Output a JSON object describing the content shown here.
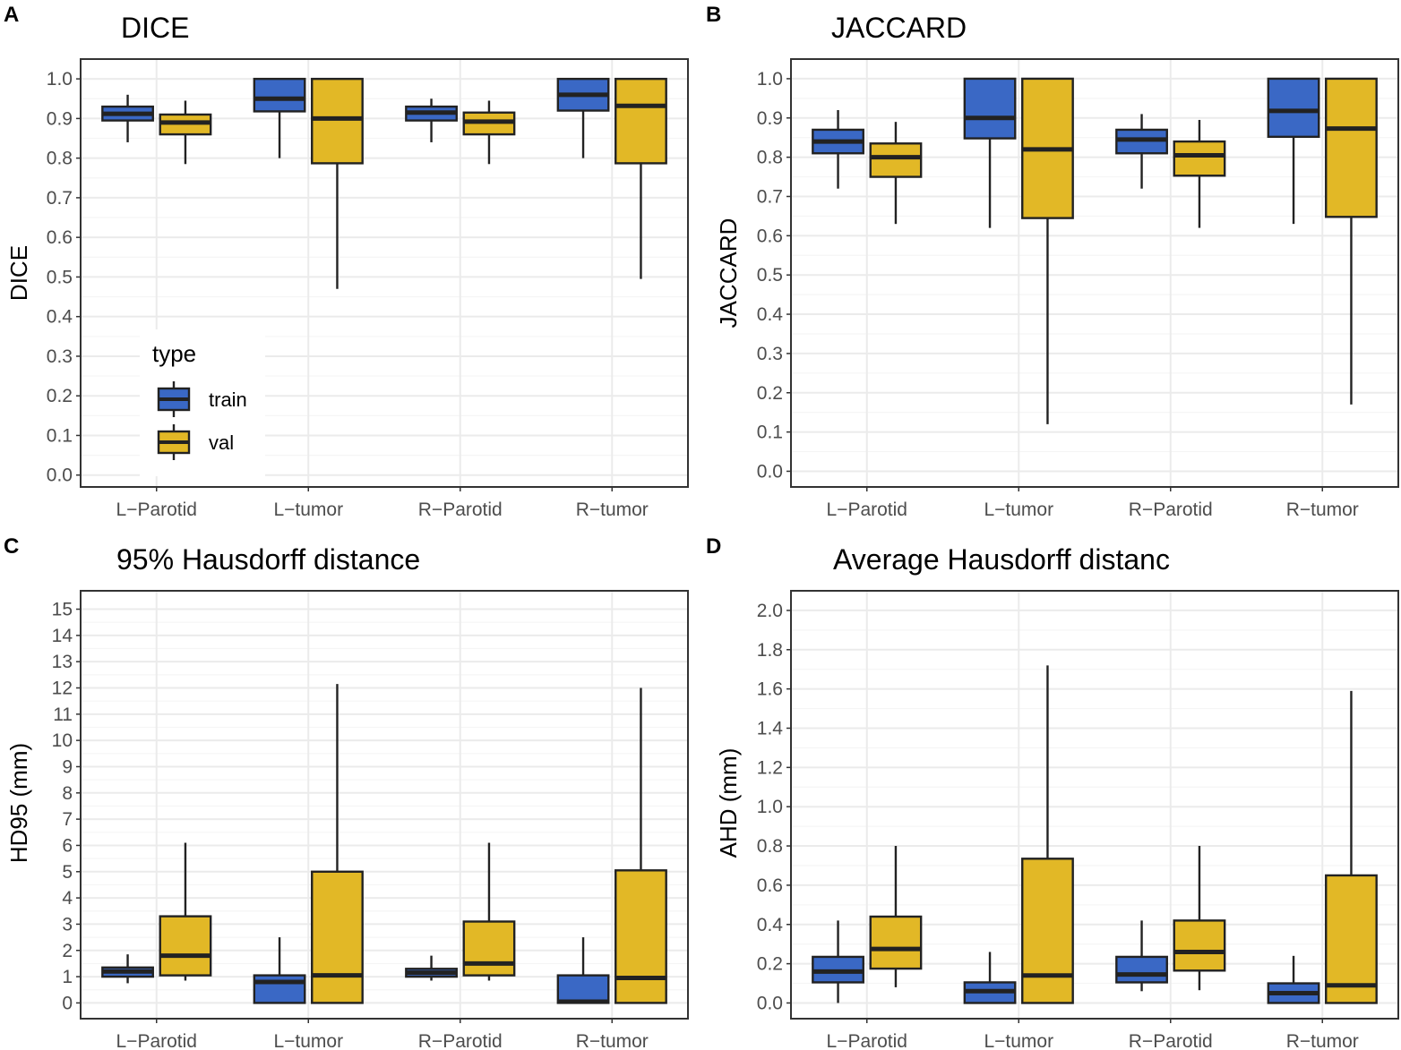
{
  "colors": {
    "train": "#3a68c5",
    "val": "#e2b826",
    "grid_major": "#ebebeb",
    "grid_minor": "#f5f5f5",
    "panel_border": "#333333",
    "box_stroke": "#222222"
  },
  "legend": {
    "title": "type",
    "items": [
      {
        "key": "train",
        "label": "train"
      },
      {
        "key": "val",
        "label": "val"
      }
    ]
  },
  "chart_data": [
    {
      "panel": "A",
      "type": "boxplot",
      "title": "DICE",
      "ylabel": "DICE",
      "xlabel": "",
      "ylim": [
        -0.03,
        1.05
      ],
      "yticks": [
        0.0,
        0.1,
        0.2,
        0.3,
        0.4,
        0.5,
        0.6,
        0.7,
        0.8,
        0.9,
        1.0
      ],
      "ytick_labels": [
        "0.0",
        "0.1",
        "0.2",
        "0.3",
        "0.4",
        "0.5",
        "0.6",
        "0.7",
        "0.8",
        "0.9",
        "1.0"
      ],
      "categories": [
        "L−Parotid",
        "L−tumor",
        "R−Parotid",
        "R−tumor"
      ],
      "series": [
        {
          "name": "train",
          "boxes": [
            {
              "min": 0.84,
              "q1": 0.895,
              "median": 0.912,
              "q3": 0.93,
              "max": 0.96
            },
            {
              "min": 0.8,
              "q1": 0.918,
              "median": 0.95,
              "q3": 1.0,
              "max": 1.0
            },
            {
              "min": 0.84,
              "q1": 0.895,
              "median": 0.915,
              "q3": 0.93,
              "max": 0.95
            },
            {
              "min": 0.8,
              "q1": 0.92,
              "median": 0.96,
              "q3": 1.0,
              "max": 1.0
            }
          ]
        },
        {
          "name": "val",
          "boxes": [
            {
              "min": 0.785,
              "q1": 0.86,
              "median": 0.89,
              "q3": 0.91,
              "max": 0.945
            },
            {
              "min": 0.47,
              "q1": 0.787,
              "median": 0.9,
              "q3": 1.0,
              "max": 1.0
            },
            {
              "min": 0.785,
              "q1": 0.86,
              "median": 0.892,
              "q3": 0.915,
              "max": 0.945
            },
            {
              "min": 0.495,
              "q1": 0.787,
              "median": 0.932,
              "q3": 1.0,
              "max": 1.0
            }
          ]
        }
      ],
      "legend_position": "inside-bottom-left"
    },
    {
      "panel": "B",
      "type": "boxplot",
      "title": "JACCARD",
      "ylabel": "JACCARD",
      "xlabel": "",
      "ylim": [
        -0.04,
        1.05
      ],
      "yticks": [
        0.0,
        0.1,
        0.2,
        0.3,
        0.4,
        0.5,
        0.6,
        0.7,
        0.8,
        0.9,
        1.0
      ],
      "ytick_labels": [
        "0.0",
        "0.1",
        "0.2",
        "0.3",
        "0.4",
        "0.5",
        "0.6",
        "0.7",
        "0.8",
        "0.9",
        "1.0"
      ],
      "categories": [
        "L−Parotid",
        "L−tumor",
        "R−Parotid",
        "R−tumor"
      ],
      "series": [
        {
          "name": "train",
          "boxes": [
            {
              "min": 0.72,
              "q1": 0.81,
              "median": 0.84,
              "q3": 0.87,
              "max": 0.92
            },
            {
              "min": 0.62,
              "q1": 0.848,
              "median": 0.9,
              "q3": 1.0,
              "max": 1.0
            },
            {
              "min": 0.72,
              "q1": 0.81,
              "median": 0.845,
              "q3": 0.87,
              "max": 0.91
            },
            {
              "min": 0.63,
              "q1": 0.852,
              "median": 0.918,
              "q3": 1.0,
              "max": 1.0
            }
          ]
        },
        {
          "name": "val",
          "boxes": [
            {
              "min": 0.63,
              "q1": 0.75,
              "median": 0.8,
              "q3": 0.835,
              "max": 0.89
            },
            {
              "min": 0.12,
              "q1": 0.645,
              "median": 0.82,
              "q3": 1.0,
              "max": 1.0
            },
            {
              "min": 0.62,
              "q1": 0.753,
              "median": 0.805,
              "q3": 0.84,
              "max": 0.895
            },
            {
              "min": 0.17,
              "q1": 0.648,
              "median": 0.873,
              "q3": 1.0,
              "max": 1.0
            }
          ]
        }
      ]
    },
    {
      "panel": "C",
      "type": "boxplot",
      "title": "95% Hausdorff distance",
      "ylabel": "HD95 (mm)",
      "xlabel": "",
      "ylim": [
        -0.6,
        15.7
      ],
      "yticks": [
        0,
        1,
        2,
        3,
        4,
        5,
        6,
        7,
        8,
        9,
        10,
        11,
        12,
        13,
        14,
        15
      ],
      "ytick_labels": [
        "0",
        "1",
        "2",
        "3",
        "4",
        "5",
        "6",
        "7",
        "8",
        "9",
        "10",
        "11",
        "12",
        "13",
        "14",
        "15"
      ],
      "categories": [
        "L−Parotid",
        "L−tumor",
        "R−Parotid",
        "R−tumor"
      ],
      "series": [
        {
          "name": "train",
          "boxes": [
            {
              "min": 0.75,
              "q1": 1.0,
              "median": 1.2,
              "q3": 1.35,
              "max": 1.85
            },
            {
              "min": 0.0,
              "q1": 0.0,
              "median": 0.8,
              "q3": 1.05,
              "max": 2.5
            },
            {
              "min": 0.85,
              "q1": 1.0,
              "median": 1.15,
              "q3": 1.3,
              "max": 1.8
            },
            {
              "min": 0.0,
              "q1": 0.0,
              "median": 0.05,
              "q3": 1.05,
              "max": 2.5
            }
          ]
        },
        {
          "name": "val",
          "boxes": [
            {
              "min": 0.85,
              "q1": 1.05,
              "median": 1.8,
              "q3": 3.3,
              "max": 6.1
            },
            {
              "min": 0.0,
              "q1": 0.0,
              "median": 1.05,
              "q3": 5.0,
              "max": 12.15
            },
            {
              "min": 0.85,
              "q1": 1.05,
              "median": 1.5,
              "q3": 3.1,
              "max": 6.1
            },
            {
              "min": 0.0,
              "q1": 0.0,
              "median": 0.95,
              "q3": 5.05,
              "max": 12.0
            }
          ]
        }
      ]
    },
    {
      "panel": "D",
      "type": "boxplot",
      "title": "Average Hausdorff distanc",
      "ylabel": "AHD (mm)",
      "xlabel": "",
      "ylim": [
        -0.08,
        2.1
      ],
      "yticks": [
        0.0,
        0.2,
        0.4,
        0.6,
        0.8,
        1.0,
        1.2,
        1.4,
        1.6,
        1.8,
        2.0
      ],
      "ytick_labels": [
        "0.0",
        "0.2",
        "0.4",
        "0.6",
        "0.8",
        "1.0",
        "1.2",
        "1.4",
        "1.6",
        "1.8",
        "2.0"
      ],
      "categories": [
        "L−Parotid",
        "L−tumor",
        "R−Parotid",
        "R−tumor"
      ],
      "series": [
        {
          "name": "train",
          "boxes": [
            {
              "min": 0.0,
              "q1": 0.105,
              "median": 0.16,
              "q3": 0.235,
              "max": 0.42
            },
            {
              "min": 0.0,
              "q1": 0.0,
              "median": 0.06,
              "q3": 0.105,
              "max": 0.26
            },
            {
              "min": 0.06,
              "q1": 0.105,
              "median": 0.145,
              "q3": 0.235,
              "max": 0.42
            },
            {
              "min": 0.0,
              "q1": 0.0,
              "median": 0.05,
              "q3": 0.1,
              "max": 0.24
            }
          ]
        },
        {
          "name": "val",
          "boxes": [
            {
              "min": 0.08,
              "q1": 0.175,
              "median": 0.275,
              "q3": 0.44,
              "max": 0.8
            },
            {
              "min": 0.0,
              "q1": 0.0,
              "median": 0.14,
              "q3": 0.735,
              "max": 1.72
            },
            {
              "min": 0.065,
              "q1": 0.165,
              "median": 0.26,
              "q3": 0.42,
              "max": 0.8
            },
            {
              "min": 0.0,
              "q1": 0.0,
              "median": 0.09,
              "q3": 0.65,
              "max": 1.59
            }
          ]
        }
      ]
    }
  ]
}
